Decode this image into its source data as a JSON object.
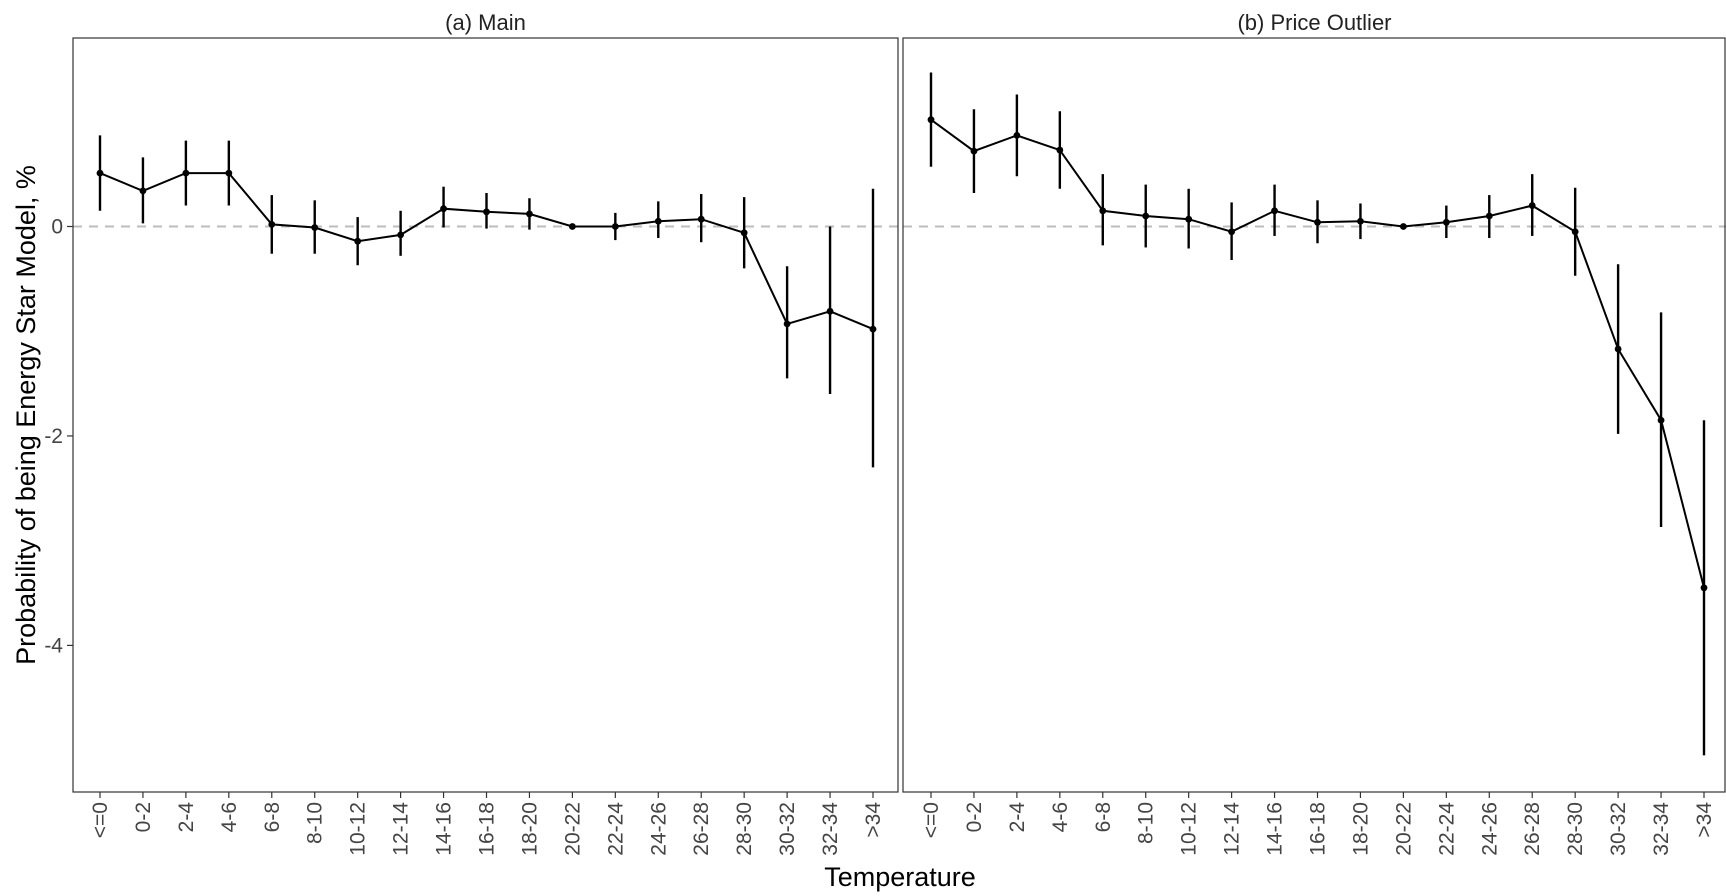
{
  "colors": {
    "background": "#ffffff",
    "line": "#000000",
    "reference_line": "#bdbdbd",
    "panel_border": "#333333"
  },
  "chart_data": [
    {
      "type": "line",
      "panel_title": "(a) Main",
      "xlabel": "Temperature",
      "ylabel": "Probability of being Energy Star Model, %",
      "ylim": [
        -5.4,
        1.8
      ],
      "yticks": [
        0,
        -2,
        -4
      ],
      "reference_line": 0,
      "categories": [
        "<=0",
        "0-2",
        "2-4",
        "4-6",
        "6-8",
        "8-10",
        "10-12",
        "12-14",
        "14-16",
        "16-18",
        "18-20",
        "20-22",
        "22-24",
        "24-26",
        "26-28",
        "28-30",
        "30-32",
        "32-34",
        ">34"
      ],
      "values": [
        0.51,
        0.34,
        0.51,
        0.51,
        0.02,
        -0.01,
        -0.14,
        -0.08,
        0.17,
        0.14,
        0.12,
        0.0,
        0.0,
        0.05,
        0.07,
        -0.06,
        -0.93,
        -0.81,
        -0.98
      ],
      "ci_low": [
        0.15,
        0.03,
        0.2,
        0.2,
        -0.26,
        -0.26,
        -0.37,
        -0.28,
        -0.01,
        -0.02,
        -0.03,
        0.0,
        -0.13,
        -0.11,
        -0.15,
        -0.4,
        -1.45,
        -1.6,
        -2.3
      ],
      "ci_high": [
        0.87,
        0.66,
        0.82,
        0.82,
        0.3,
        0.25,
        0.09,
        0.15,
        0.38,
        0.32,
        0.27,
        0.0,
        0.13,
        0.24,
        0.31,
        0.28,
        -0.38,
        0.0,
        0.36
      ]
    },
    {
      "type": "line",
      "panel_title": "(b) Price Outlier",
      "xlabel": "Temperature",
      "ylabel": "Probability of being Energy Star Model, %",
      "ylim": [
        -5.4,
        1.8
      ],
      "yticks": [
        0,
        -2,
        -4
      ],
      "reference_line": 0,
      "categories": [
        "<=0",
        "0-2",
        "2-4",
        "4-6",
        "6-8",
        "8-10",
        "10-12",
        "12-14",
        "14-16",
        "16-18",
        "18-20",
        "20-22",
        "22-24",
        "24-26",
        "26-28",
        "28-30",
        "30-32",
        "32-34",
        ">34"
      ],
      "values": [
        1.02,
        0.72,
        0.87,
        0.73,
        0.15,
        0.1,
        0.07,
        -0.05,
        0.15,
        0.04,
        0.05,
        0.0,
        0.04,
        0.1,
        0.2,
        -0.05,
        -1.17,
        -1.85,
        -3.45
      ],
      "ci_low": [
        0.57,
        0.32,
        0.48,
        0.36,
        -0.18,
        -0.2,
        -0.21,
        -0.32,
        -0.09,
        -0.16,
        -0.12,
        0.0,
        -0.11,
        -0.11,
        -0.09,
        -0.47,
        -1.98,
        -2.87,
        -5.05
      ],
      "ci_high": [
        1.47,
        1.12,
        1.26,
        1.1,
        0.5,
        0.4,
        0.36,
        0.23,
        0.4,
        0.25,
        0.22,
        0.0,
        0.2,
        0.3,
        0.5,
        0.37,
        -0.36,
        -0.82,
        -1.85
      ]
    }
  ]
}
